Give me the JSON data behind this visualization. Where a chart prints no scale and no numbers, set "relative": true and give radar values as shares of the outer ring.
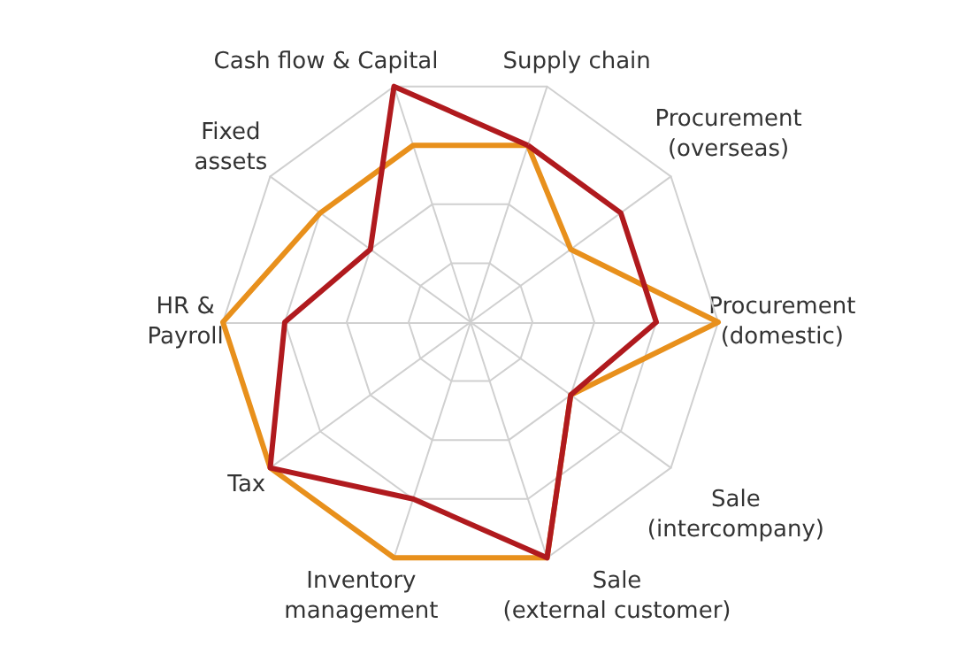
{
  "chart_data": {
    "type": "radar",
    "relative": true,
    "categories": [
      "Supply chain",
      "Procurement\n(overseas)",
      "Procurement\n(domestic)",
      "Sale\n(intercompany)",
      "Sale\n(external customer)",
      "Inventory\nmanagement",
      "Tax",
      "HR &\nPayroll",
      "Fixed\nassets",
      "Cash flow & Capital"
    ],
    "series": [
      {
        "color": "#e8901c",
        "values": [
          0.75,
          0.5,
          1,
          0.5,
          1,
          1,
          1,
          1,
          0.75,
          0.75
        ]
      },
      {
        "color": "#b01a1e",
        "values": [
          0.75,
          0.75,
          0.75,
          0.5,
          1,
          0.75,
          1,
          0.75,
          0.5,
          1
        ]
      }
    ],
    "marker": "none"
  }
}
